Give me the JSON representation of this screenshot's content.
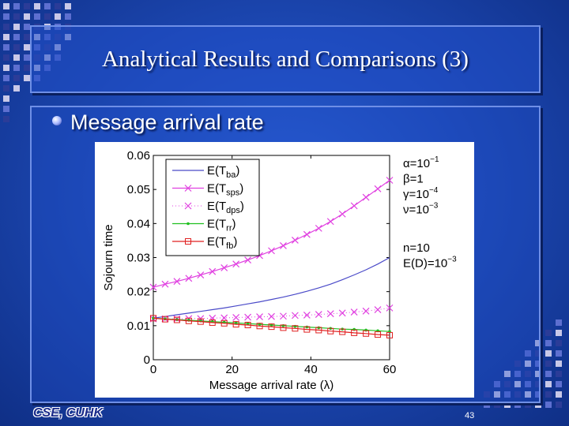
{
  "slide": {
    "title": "Analytical Results and Comparisons (3)",
    "bullet": "Message arrival rate",
    "logo": "CSE, CUHK",
    "page_number": "43"
  },
  "colors": {
    "ba": "#4a4ac8",
    "sps": "#e040e0",
    "dps": "#e040e0",
    "rr": "#20c020",
    "fb": "#e02020"
  },
  "chart_data": {
    "type": "line",
    "xlabel": "Message arrival rate (λ)",
    "ylabel": "Sojourn time",
    "xlim": [
      0,
      60
    ],
    "ylim": [
      0,
      0.06
    ],
    "xticks": [
      "0",
      "20",
      "40",
      "60"
    ],
    "yticks": [
      "0",
      "0.01",
      "0.02",
      "0.03",
      "0.04",
      "0.05",
      "0.06"
    ],
    "grid": false,
    "legend_position": "top-left",
    "x": [
      0,
      3,
      6,
      9,
      12,
      15,
      18,
      21,
      24,
      27,
      30,
      33,
      36,
      39,
      42,
      45,
      48,
      51,
      54,
      57,
      60
    ],
    "series": [
      {
        "name": "E(T_ba)",
        "label_main": "E(T",
        "label_sub": "ba",
        "style": "line",
        "key": "ba",
        "values": [
          0.0122,
          0.0127,
          0.0132,
          0.0137,
          0.0142,
          0.0147,
          0.0152,
          0.0158,
          0.0164,
          0.017,
          0.0177,
          0.0184,
          0.0192,
          0.0201,
          0.0211,
          0.0222,
          0.0235,
          0.0249,
          0.0264,
          0.0281,
          0.03
        ]
      },
      {
        "name": "E(T_sps)",
        "label_main": "E(T",
        "label_sub": "sps",
        "style": "line-x",
        "key": "sps",
        "values": [
          0.0213,
          0.0222,
          0.023,
          0.0239,
          0.0249,
          0.0259,
          0.027,
          0.0281,
          0.0293,
          0.0306,
          0.032,
          0.0335,
          0.0351,
          0.0368,
          0.0386,
          0.0406,
          0.0428,
          0.0452,
          0.0477,
          0.0502,
          0.0527
        ]
      },
      {
        "name": "E(T_dps)",
        "label_main": "E(T",
        "label_sub": "dps",
        "style": "dot-x",
        "key": "dps",
        "values": [
          0.012,
          0.012,
          0.012,
          0.0121,
          0.0121,
          0.0122,
          0.0123,
          0.0124,
          0.0125,
          0.0126,
          0.0127,
          0.0128,
          0.013,
          0.0131,
          0.0133,
          0.0135,
          0.0137,
          0.014,
          0.0143,
          0.0147,
          0.0152
        ]
      },
      {
        "name": "E(T_rr)",
        "label_main": "E(T",
        "label_sub": "rr",
        "style": "line-dot",
        "key": "rr",
        "values": [
          0.0122,
          0.012,
          0.0118,
          0.0116,
          0.0114,
          0.0112,
          0.011,
          0.0108,
          0.0106,
          0.0104,
          0.0102,
          0.01,
          0.0098,
          0.0096,
          0.0094,
          0.0092,
          0.009,
          0.0089,
          0.0087,
          0.0085,
          0.0083
        ]
      },
      {
        "name": "E(T_fb)",
        "label_main": "E(T",
        "label_sub": "fb",
        "style": "line-square",
        "key": "fb",
        "values": [
          0.0122,
          0.0119,
          0.0117,
          0.0114,
          0.0112,
          0.0109,
          0.0107,
          0.0104,
          0.0102,
          0.0099,
          0.0097,
          0.0094,
          0.0092,
          0.0089,
          0.0087,
          0.0084,
          0.0082,
          0.0079,
          0.0077,
          0.0074,
          0.0072
        ]
      }
    ],
    "annotations": [
      {
        "main": "α=10",
        "sup": "−1"
      },
      {
        "main": "β=1",
        "sup": ""
      },
      {
        "main": "γ=10",
        "sup": "−4"
      },
      {
        "main": "ν=10",
        "sup": "−3"
      },
      {
        "main": "",
        "sup": ""
      },
      {
        "main": "n=10",
        "sup": ""
      },
      {
        "main": "E(D)=10",
        "sup": "−3"
      }
    ]
  }
}
